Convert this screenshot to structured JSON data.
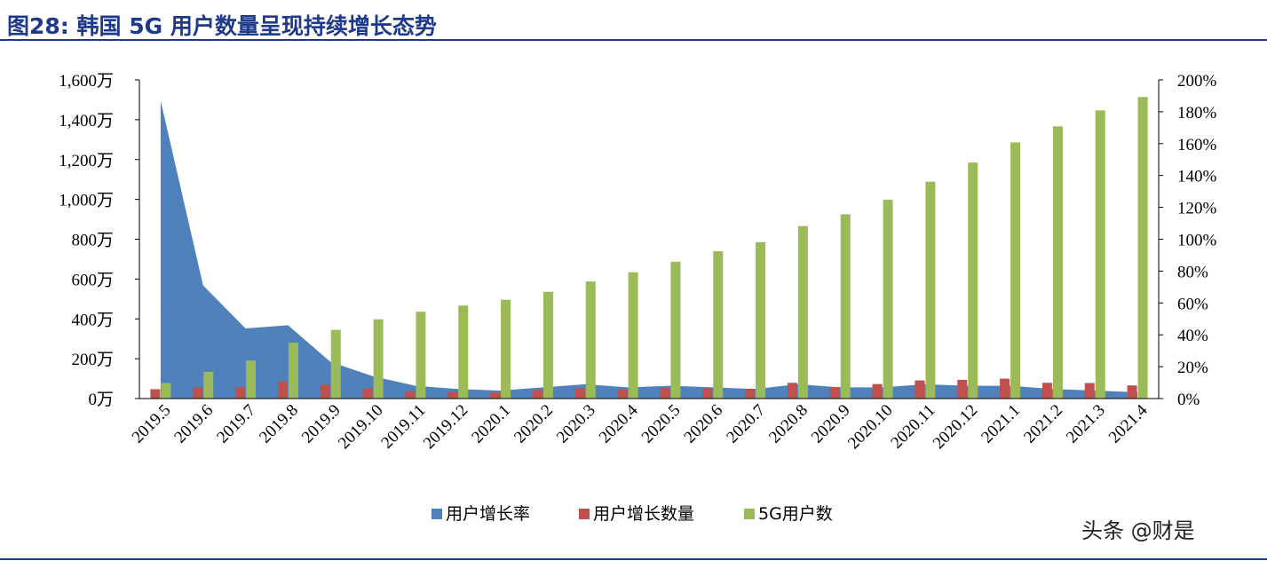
{
  "title": "图28:  韩国 5G 用户数量呈现持续增长态势",
  "watermark": "头条 @财是",
  "colors": {
    "growth_rate": "#4f81bd",
    "growth_count": "#c0504d",
    "users": "#9bbb59",
    "title": "#1f3a8a"
  },
  "chart_data": {
    "type": "bar",
    "categories": [
      "2019.5",
      "2019.6",
      "2019.7",
      "2019.8",
      "2019.9",
      "2019.10",
      "2019.11",
      "2019.12",
      "2020.1",
      "2020.2",
      "2020.3",
      "2020.4",
      "2020.5",
      "2020.6",
      "2020.7",
      "2020.8",
      "2020.9",
      "2020.10",
      "2020.11",
      "2020.12",
      "2021.1",
      "2021.2",
      "2021.3",
      "2021.4"
    ],
    "left_axis": {
      "min": 0,
      "max": 1600,
      "step": 200,
      "unit": "万",
      "tick_labels": [
        "0万",
        "200万",
        "400万",
        "600万",
        "800万",
        "1,000万",
        "1,200万",
        "1,400万",
        "1,600万"
      ]
    },
    "right_axis": {
      "min": 0,
      "max": 200,
      "step": 20,
      "unit": "%",
      "tick_labels": [
        "0%",
        "20%",
        "40%",
        "60%",
        "80%",
        "100%",
        "120%",
        "140%",
        "160%",
        "180%",
        "200%"
      ]
    },
    "series": [
      {
        "name": "用户增长率",
        "type": "area",
        "axis": "right",
        "values": [
          187,
          71,
          44,
          46,
          23,
          14,
          8,
          6,
          5,
          7,
          9,
          7,
          8,
          7,
          6,
          9,
          7,
          7,
          9,
          8,
          8,
          6,
          5,
          4
        ]
      },
      {
        "name": "用户增长数量",
        "type": "bar",
        "axis": "left",
        "values": [
          47,
          55,
          58,
          86,
          70,
          50,
          37,
          34,
          30,
          43,
          52,
          46,
          54,
          52,
          49,
          79,
          58,
          73,
          91,
          94,
          100,
          79,
          78,
          66
        ]
      },
      {
        "name": "5G用户数",
        "type": "bar",
        "axis": "left",
        "values": [
          78,
          134,
          191,
          280,
          345,
          398,
          436,
          467,
          496,
          536,
          588,
          634,
          687,
          740,
          785,
          866,
          925,
          998,
          1089,
          1185,
          1286,
          1367,
          1447,
          1514
        ]
      }
    ]
  }
}
